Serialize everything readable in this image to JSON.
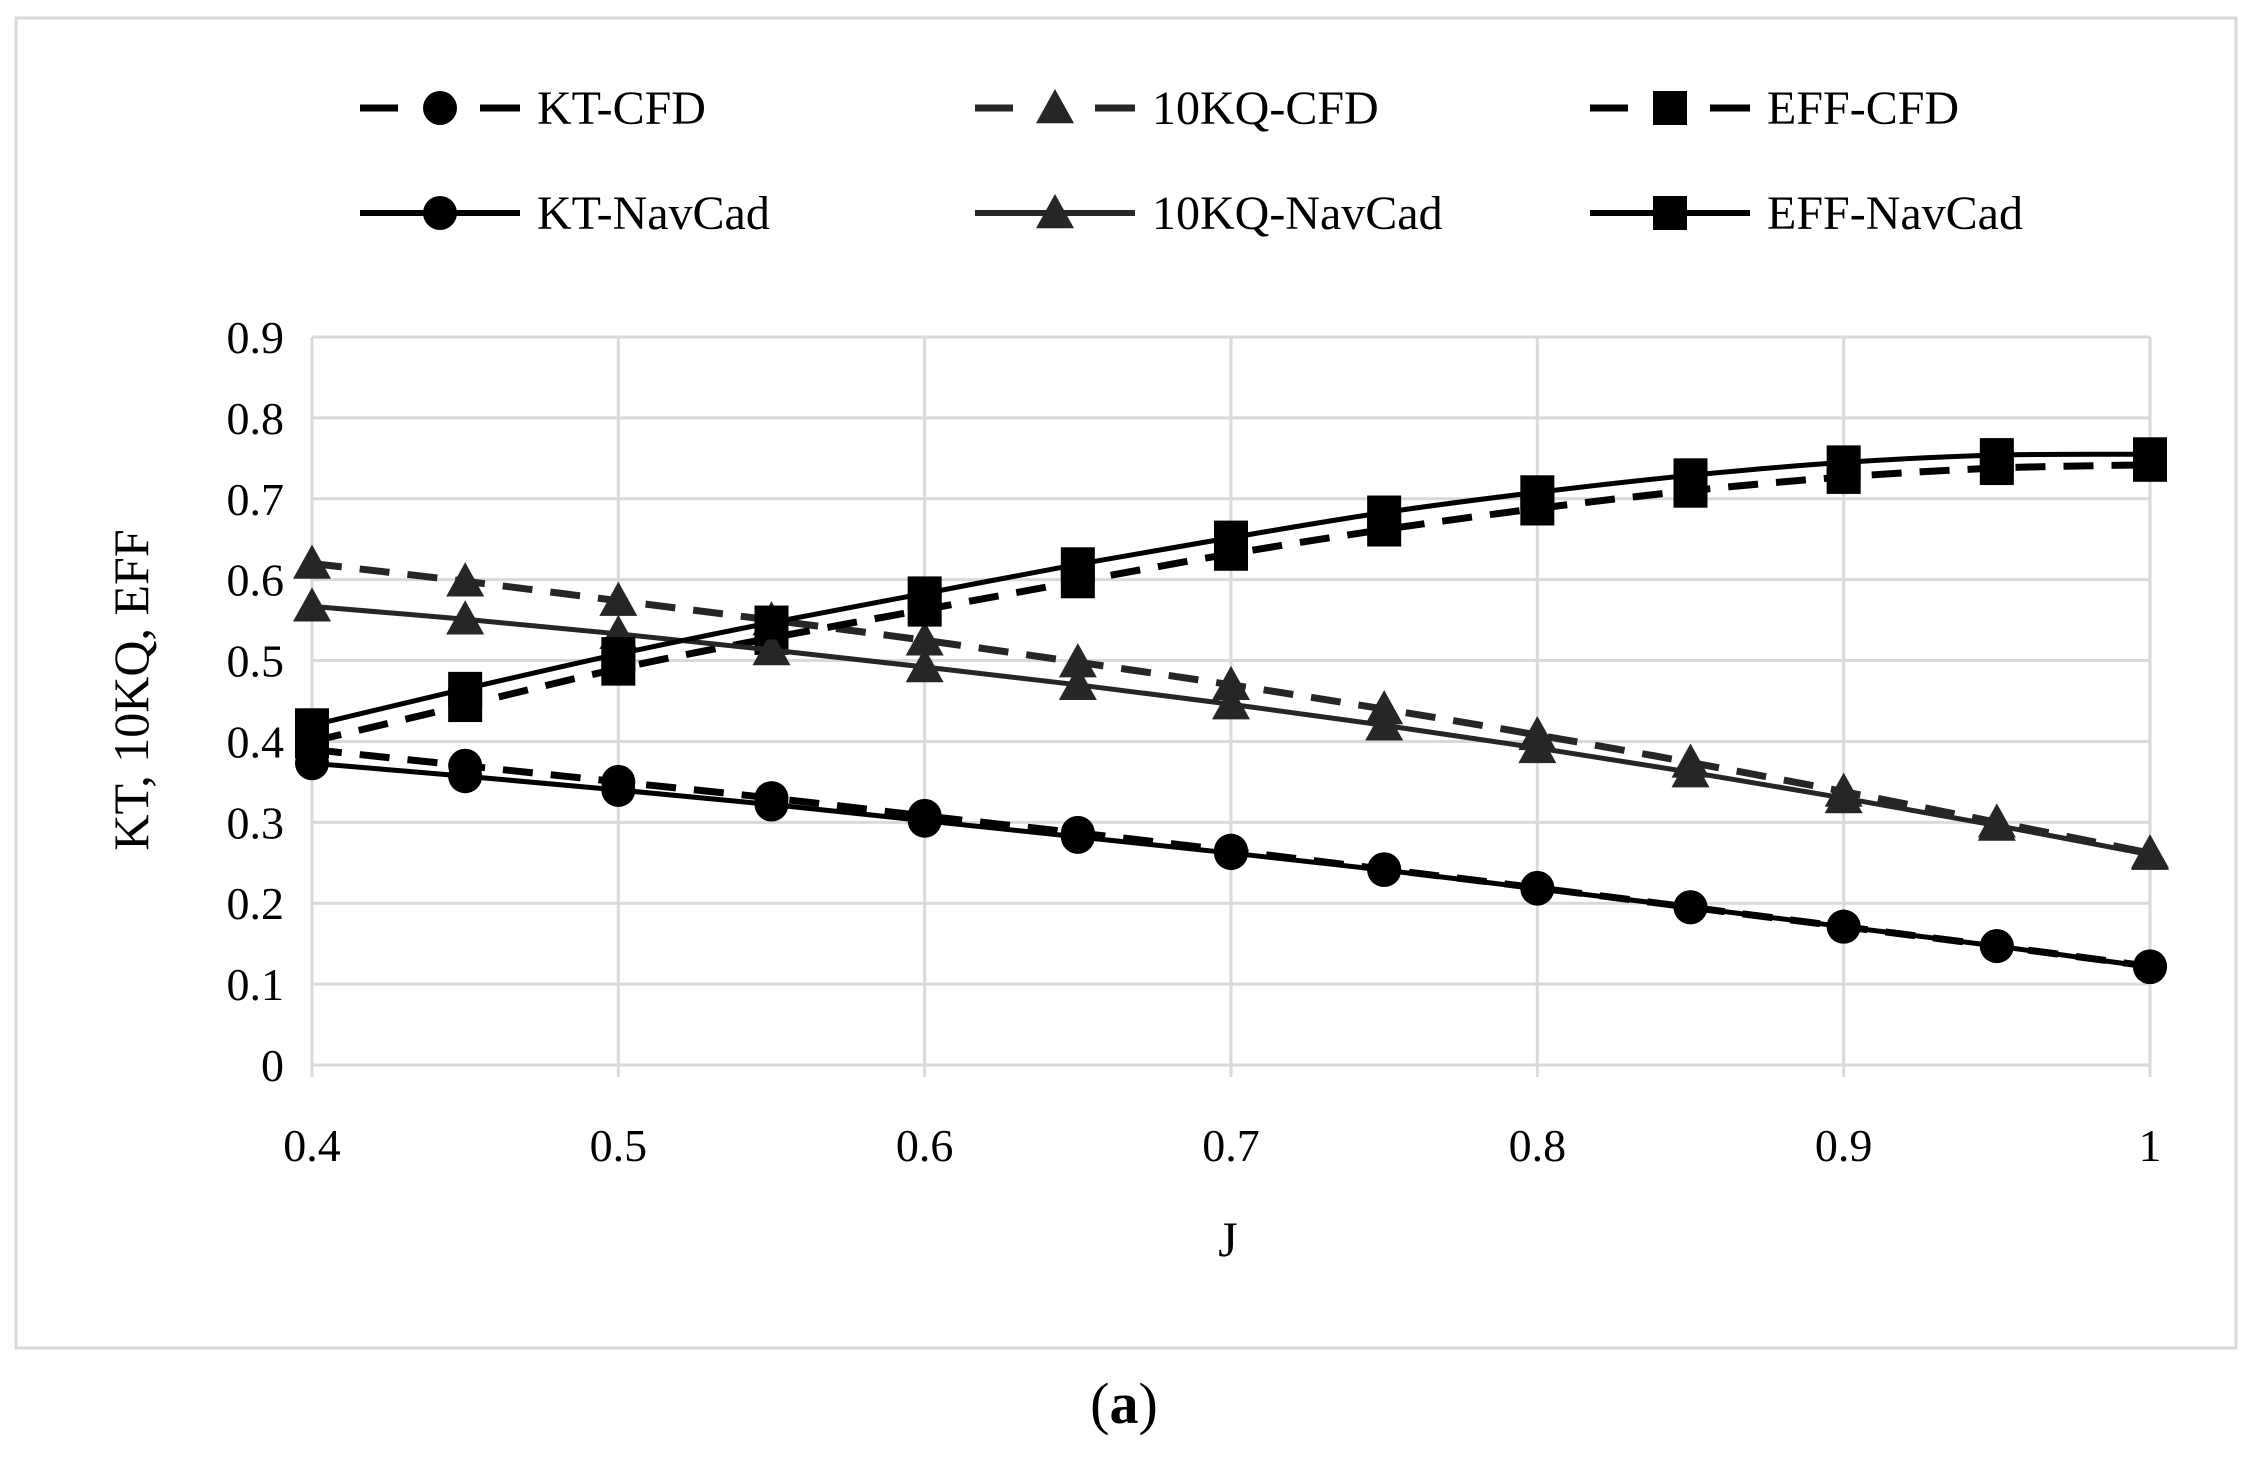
{
  "chart_data": {
    "type": "line",
    "title": "",
    "xlabel": "J",
    "ylabel": "KT, 10KQ, EFF",
    "xlim": [
      0.4,
      1.0
    ],
    "ylim": [
      0,
      0.9
    ],
    "x_ticks": [
      "0.4",
      "0.5",
      "0.6",
      "0.7",
      "0.8",
      "0.9",
      "1"
    ],
    "y_ticks": [
      "0",
      "0.1",
      "0.2",
      "0.3",
      "0.4",
      "0.5",
      "0.6",
      "0.7",
      "0.8",
      "0.9"
    ],
    "grid": true,
    "legend_position": "top",
    "series": [
      {
        "name": "KT-CFD",
        "style": "dashed",
        "marker": "circle",
        "x": [
          0.4,
          0.45,
          0.5,
          0.55,
          0.6,
          0.65,
          0.7,
          0.75,
          0.8,
          0.85,
          0.9,
          0.95,
          1.0
        ],
        "values": [
          0.39,
          0.37,
          0.35,
          0.33,
          0.308,
          0.287,
          0.265,
          0.242,
          0.219,
          0.195,
          0.171,
          0.147,
          0.122
        ]
      },
      {
        "name": "10KQ-CFD",
        "style": "dashed",
        "marker": "triangle",
        "x": [
          0.4,
          0.45,
          0.5,
          0.55,
          0.6,
          0.65,
          0.7,
          0.75,
          0.8,
          0.85,
          0.9,
          0.95,
          1.0
        ],
        "values": [
          0.62,
          0.598,
          0.574,
          0.55,
          0.525,
          0.498,
          0.47,
          0.44,
          0.408,
          0.374,
          0.338,
          0.3,
          0.262
        ]
      },
      {
        "name": "EFF-CFD",
        "style": "dashed",
        "marker": "square",
        "x": [
          0.4,
          0.45,
          0.5,
          0.55,
          0.6,
          0.65,
          0.7,
          0.75,
          0.8,
          0.85,
          0.9,
          0.95,
          1.0
        ],
        "values": [
          0.4,
          0.445,
          0.49,
          0.528,
          0.563,
          0.598,
          0.632,
          0.662,
          0.688,
          0.71,
          0.727,
          0.738,
          0.742
        ]
      },
      {
        "name": "KT-NavCad",
        "style": "solid",
        "marker": "circle",
        "x": [
          0.4,
          0.45,
          0.5,
          0.55,
          0.6,
          0.65,
          0.7,
          0.75,
          0.8,
          0.85,
          0.9,
          0.95,
          1.0
        ],
        "values": [
          0.373,
          0.357,
          0.34,
          0.322,
          0.302,
          0.282,
          0.262,
          0.241,
          0.218,
          0.195,
          0.171,
          0.147,
          0.121
        ]
      },
      {
        "name": "10KQ-NavCad",
        "style": "solid",
        "marker": "triangle",
        "x": [
          0.4,
          0.45,
          0.5,
          0.55,
          0.6,
          0.65,
          0.7,
          0.75,
          0.8,
          0.85,
          0.9,
          0.95,
          1.0
        ],
        "values": [
          0.567,
          0.551,
          0.533,
          0.513,
          0.492,
          0.47,
          0.446,
          0.42,
          0.392,
          0.362,
          0.33,
          0.296,
          0.26
        ]
      },
      {
        "name": "EFF-NavCad",
        "style": "solid",
        "marker": "square",
        "x": [
          0.4,
          0.45,
          0.5,
          0.55,
          0.6,
          0.65,
          0.7,
          0.75,
          0.8,
          0.85,
          0.9,
          0.95,
          1.0
        ],
        "values": [
          0.42,
          0.465,
          0.508,
          0.547,
          0.583,
          0.619,
          0.652,
          0.683,
          0.708,
          0.729,
          0.745,
          0.754,
          0.755
        ]
      }
    ]
  },
  "caption": {
    "open": "(",
    "letter": "a",
    "close": ")"
  }
}
